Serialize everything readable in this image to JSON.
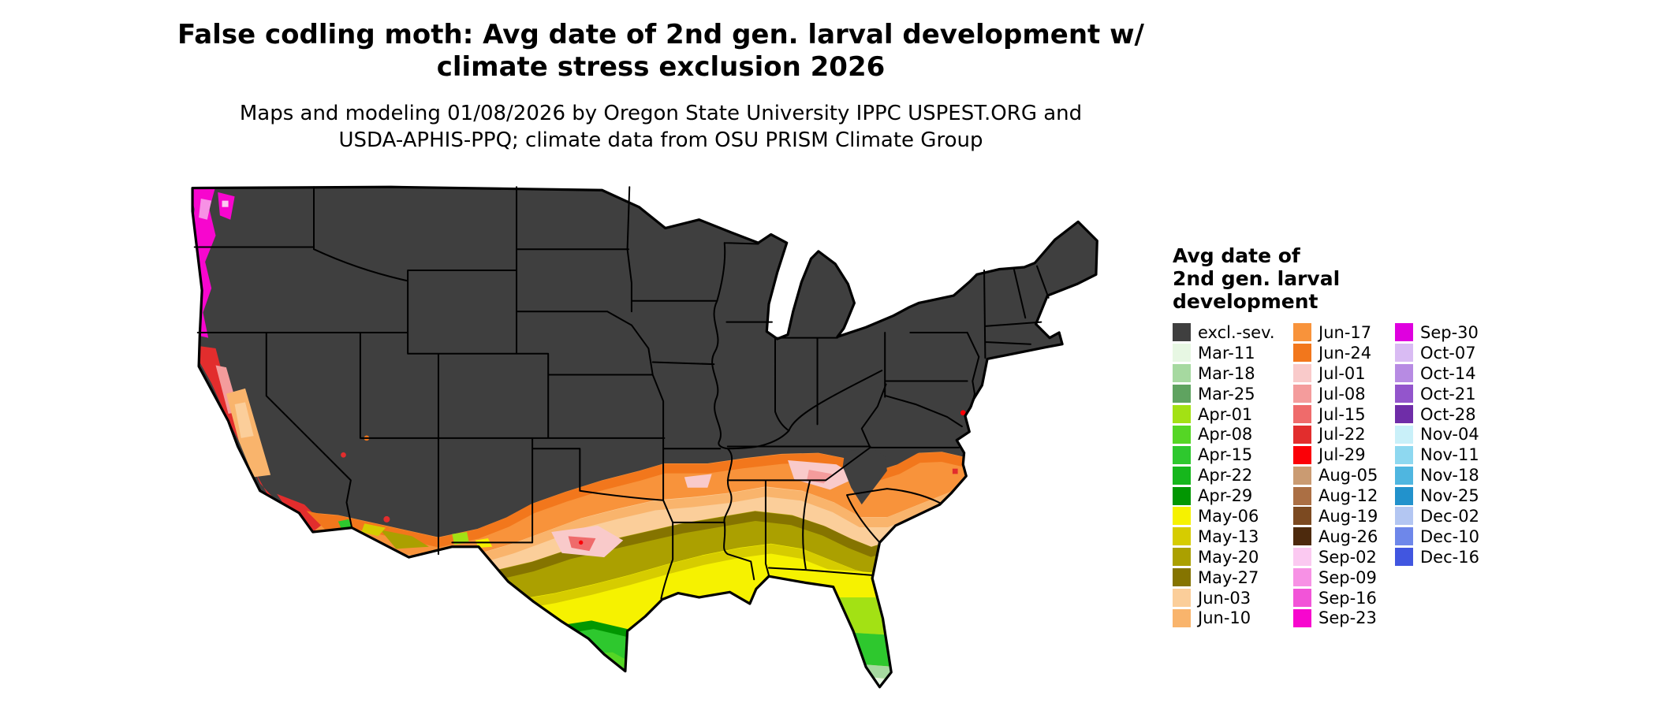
{
  "title": {
    "line1": "False codling moth: Avg date of 2nd gen. larval development w/",
    "line2": "climate stress exclusion 2026"
  },
  "subtitle": {
    "line1": "Maps and modeling 01/08/2026 by Oregon State University IPPC USPEST.ORG and",
    "line2": "USDA-APHIS-PPQ; climate data from OSU PRISM Climate Group"
  },
  "legend": {
    "title_lines": [
      "Avg date of",
      "2nd gen. larval",
      "development"
    ],
    "columns": [
      {
        "entries": [
          {
            "label": "excl.-sev.",
            "color": "#3F3F3F"
          },
          {
            "label": "Mar-11",
            "color": "#E7F7E3"
          },
          {
            "label": "Mar-18",
            "color": "#A6D9A0"
          },
          {
            "label": "Mar-25",
            "color": "#5FA360"
          },
          {
            "label": "Apr-01",
            "color": "#A3E114"
          },
          {
            "label": "Apr-08",
            "color": "#55D625"
          },
          {
            "label": "Apr-15",
            "color": "#2EC82E"
          },
          {
            "label": "Apr-22",
            "color": "#16B71C"
          },
          {
            "label": "Apr-29",
            "color": "#029702"
          },
          {
            "label": "May-06",
            "color": "#F6F200"
          },
          {
            "label": "May-13",
            "color": "#D6CC00"
          },
          {
            "label": "May-20",
            "color": "#ABA000"
          },
          {
            "label": "May-27",
            "color": "#857400"
          },
          {
            "label": "Jun-03",
            "color": "#FBCE9A"
          },
          {
            "label": "Jun-10",
            "color": "#F9B46C"
          }
        ]
      },
      {
        "entries": [
          {
            "label": "Jun-17",
            "color": "#F8933B"
          },
          {
            "label": "Jun-24",
            "color": "#F2771C"
          },
          {
            "label": "Jul-01",
            "color": "#F9CACA"
          },
          {
            "label": "Jul-08",
            "color": "#F49C9C"
          },
          {
            "label": "Jul-15",
            "color": "#EF6B6B"
          },
          {
            "label": "Jul-22",
            "color": "#E22D2D"
          },
          {
            "label": "Jul-29",
            "color": "#FB0007"
          },
          {
            "label": "Aug-05",
            "color": "#CA9B72"
          },
          {
            "label": "Aug-12",
            "color": "#AB6F44"
          },
          {
            "label": "Aug-19",
            "color": "#7C4A21"
          },
          {
            "label": "Aug-26",
            "color": "#4D2A0D"
          },
          {
            "label": "Sep-02",
            "color": "#FBC9F1"
          },
          {
            "label": "Sep-09",
            "color": "#F791E5"
          },
          {
            "label": "Sep-16",
            "color": "#F254D8"
          },
          {
            "label": "Sep-23",
            "color": "#F706CE"
          }
        ]
      },
      {
        "entries": [
          {
            "label": "Sep-30",
            "color": "#DF00DF"
          },
          {
            "label": "Oct-07",
            "color": "#D9BBF3"
          },
          {
            "label": "Oct-14",
            "color": "#B78BE3"
          },
          {
            "label": "Oct-21",
            "color": "#9355CC"
          },
          {
            "label": "Oct-28",
            "color": "#6F2DA8"
          },
          {
            "label": "Nov-04",
            "color": "#C9F0F9"
          },
          {
            "label": "Nov-11",
            "color": "#8ED8F0"
          },
          {
            "label": "Nov-18",
            "color": "#4FB6E0"
          },
          {
            "label": "Nov-25",
            "color": "#2292CC"
          },
          {
            "label": "Dec-02",
            "color": "#B3C6F2"
          },
          {
            "label": "Dec-10",
            "color": "#6E87EA"
          },
          {
            "label": "Dec-16",
            "color": "#4156E0"
          }
        ]
      }
    ]
  },
  "map": {
    "background_color": "#FFFFFF",
    "state_border_color": "#000000"
  }
}
